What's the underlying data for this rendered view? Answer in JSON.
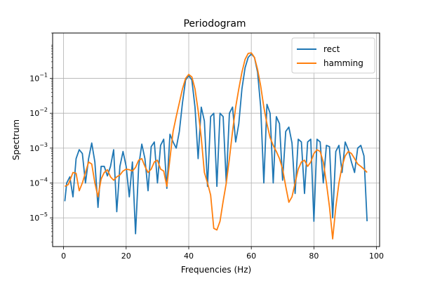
{
  "chart_data": {
    "type": "line",
    "title": "Periodogram",
    "xlabel": "Frequencies (Hz)",
    "ylabel": "Spectrum",
    "xlim": [
      -3.5,
      101
    ],
    "xticks": [
      0,
      20,
      40,
      60,
      80,
      100
    ],
    "ylim": [
      1.5e-06,
      2
    ],
    "yscale": "log",
    "ytick_values": [
      1e-05,
      0.0001,
      0.001,
      0.01,
      0.1
    ],
    "ytick_labels": [
      {
        "base": "10",
        "exp": "−5"
      },
      {
        "base": "10",
        "exp": "−4"
      },
      {
        "base": "10",
        "exp": "−3"
      },
      {
        "base": "10",
        "exp": "−2"
      },
      {
        "base": "10",
        "exp": "−1"
      }
    ],
    "grid": true,
    "legend_position": "top-right",
    "series": [
      {
        "name": "rect",
        "color": "#1f77b4",
        "points": [
          [
            0.4,
            3e-05
          ],
          [
            1,
            0.0001
          ],
          [
            2,
            0.00015
          ],
          [
            3,
            4e-05
          ],
          [
            4,
            0.0005
          ],
          [
            5,
            0.0009
          ],
          [
            6,
            0.0007
          ],
          [
            7,
            0.0001
          ],
          [
            8,
            0.0005
          ],
          [
            9,
            0.0014
          ],
          [
            10,
            0.0004
          ],
          [
            11,
            2e-05
          ],
          [
            12,
            0.0003
          ],
          [
            13,
            0.0003
          ],
          [
            14,
            0.00016
          ],
          [
            15,
            0.0003
          ],
          [
            16,
            0.0009
          ],
          [
            17,
            1.5e-05
          ],
          [
            18,
            0.0003
          ],
          [
            19,
            0.0008
          ],
          [
            20,
            0.0003
          ],
          [
            21,
            4e-05
          ],
          [
            22,
            0.0004
          ],
          [
            23,
            3.5e-06
          ],
          [
            24,
            0.0003
          ],
          [
            25,
            0.0013
          ],
          [
            26,
            0.0005
          ],
          [
            27,
            6e-05
          ],
          [
            28,
            0.0011
          ],
          [
            29,
            0.0015
          ],
          [
            30,
            0.0001
          ],
          [
            31,
            0.0012
          ],
          [
            32,
            0.0018
          ],
          [
            33,
            7e-05
          ],
          [
            34,
            0.0025
          ],
          [
            35,
            0.0015
          ],
          [
            36,
            0.001
          ],
          [
            37,
            0.003
          ],
          [
            38,
            0.02
          ],
          [
            39,
            0.09
          ],
          [
            40,
            0.12
          ],
          [
            41,
            0.09
          ],
          [
            42,
            0.015
          ],
          [
            43,
            0.0005
          ],
          [
            44,
            0.015
          ],
          [
            45,
            0.006
          ],
          [
            46,
            8e-05
          ],
          [
            47,
            0.008
          ],
          [
            48,
            0.01
          ],
          [
            49,
            8e-05
          ],
          [
            50,
            0.01
          ],
          [
            51,
            0.008
          ],
          [
            52,
            0.0001
          ],
          [
            53,
            0.01
          ],
          [
            54,
            0.015
          ],
          [
            55,
            0.0015
          ],
          [
            56,
            0.005
          ],
          [
            57,
            0.05
          ],
          [
            58,
            0.2
          ],
          [
            59,
            0.4
          ],
          [
            60,
            0.5
          ],
          [
            61,
            0.4
          ],
          [
            62,
            0.15
          ],
          [
            63,
            0.015
          ],
          [
            64,
            0.0001
          ],
          [
            65,
            0.018
          ],
          [
            66,
            0.01
          ],
          [
            67,
            0.0001
          ],
          [
            68,
            0.008
          ],
          [
            69,
            0.005
          ],
          [
            70,
            0.00012
          ],
          [
            71,
            0.003
          ],
          [
            72,
            0.004
          ],
          [
            73,
            0.0014
          ],
          [
            74,
            5e-05
          ],
          [
            75,
            0.0018
          ],
          [
            76,
            0.0015
          ],
          [
            77,
            5e-05
          ],
          [
            78,
            0.0015
          ],
          [
            79,
            0.0018
          ],
          [
            80,
            8e-06
          ],
          [
            81,
            0.0018
          ],
          [
            82,
            0.0015
          ],
          [
            83,
            0.0001
          ],
          [
            84,
            0.0012
          ],
          [
            85,
            0.0011
          ],
          [
            86,
            1e-05
          ],
          [
            87,
            0.0008
          ],
          [
            88,
            0.0012
          ],
          [
            89,
            0.0002
          ],
          [
            90,
            0.0015
          ],
          [
            91,
            0.0009
          ],
          [
            92,
            0.0004
          ],
          [
            93,
            0.0002
          ],
          [
            94,
            0.001
          ],
          [
            95,
            0.0012
          ],
          [
            96,
            0.0006
          ],
          [
            97,
            8e-06
          ]
        ]
      },
      {
        "name": "hamming",
        "color": "#ff7f0e",
        "points": [
          [
            0.4,
            8e-05
          ],
          [
            1.5,
            9e-05
          ],
          [
            3,
            0.0002
          ],
          [
            4,
            0.00019
          ],
          [
            5,
            6e-05
          ],
          [
            6,
            0.0001
          ],
          [
            7,
            0.0002
          ],
          [
            8,
            0.0004
          ],
          [
            9,
            0.00035
          ],
          [
            10,
            0.0001
          ],
          [
            11,
            4e-05
          ],
          [
            12,
            0.00013
          ],
          [
            13,
            0.0002
          ],
          [
            14,
            0.00024
          ],
          [
            15,
            0.00015
          ],
          [
            16,
            0.00012
          ],
          [
            17,
            0.00015
          ],
          [
            18,
            0.00017
          ],
          [
            19,
            0.00022
          ],
          [
            20,
            0.00025
          ],
          [
            21,
            0.00024
          ],
          [
            22,
            0.00022
          ],
          [
            23,
            0.00028
          ],
          [
            24,
            0.00045
          ],
          [
            25,
            0.0005
          ],
          [
            26,
            0.0003
          ],
          [
            27,
            0.0002
          ],
          [
            28,
            0.00025
          ],
          [
            29,
            0.0004
          ],
          [
            30,
            0.00045
          ],
          [
            31,
            0.00025
          ],
          [
            32,
            0.00022
          ],
          [
            33,
            8e-05
          ],
          [
            34,
            0.0005
          ],
          [
            35,
            0.003
          ],
          [
            36,
            0.008
          ],
          [
            37,
            0.02
          ],
          [
            38,
            0.05
          ],
          [
            39,
            0.1
          ],
          [
            40,
            0.13
          ],
          [
            41,
            0.11
          ],
          [
            42,
            0.05
          ],
          [
            43,
            0.012
          ],
          [
            44,
            0.002
          ],
          [
            45,
            0.0002
          ],
          [
            46,
            0.0001
          ],
          [
            47,
            4.5e-05
          ],
          [
            48,
            5e-06
          ],
          [
            49,
            4.5e-06
          ],
          [
            50,
            8e-06
          ],
          [
            51,
            3e-05
          ],
          [
            52,
            0.0001
          ],
          [
            53,
            0.0005
          ],
          [
            54,
            0.003
          ],
          [
            55,
            0.015
          ],
          [
            56,
            0.05
          ],
          [
            57,
            0.15
          ],
          [
            58,
            0.35
          ],
          [
            59,
            0.52
          ],
          [
            60,
            0.54
          ],
          [
            61,
            0.4
          ],
          [
            62,
            0.18
          ],
          [
            63,
            0.06
          ],
          [
            64,
            0.015
          ],
          [
            65,
            0.005
          ],
          [
            66,
            0.002
          ],
          [
            67,
            0.0012
          ],
          [
            68,
            0.0008
          ],
          [
            69,
            0.0005
          ],
          [
            70,
            0.00025
          ],
          [
            71,
            8e-05
          ],
          [
            72,
            2.8e-05
          ],
          [
            73,
            4e-05
          ],
          [
            74,
            0.0001
          ],
          [
            75,
            0.00025
          ],
          [
            76,
            0.0004
          ],
          [
            77,
            0.00045
          ],
          [
            78,
            0.0003
          ],
          [
            79,
            0.0004
          ],
          [
            80,
            0.0007
          ],
          [
            81,
            0.0009
          ],
          [
            82,
            0.0008
          ],
          [
            83,
            0.0004
          ],
          [
            84,
            0.0001
          ],
          [
            85,
            2e-05
          ],
          [
            86,
            2.5e-06
          ],
          [
            87,
            2e-05
          ],
          [
            88,
            0.0001
          ],
          [
            89,
            0.0003
          ],
          [
            90,
            0.0006
          ],
          [
            91,
            0.0008
          ],
          [
            92,
            0.0007
          ],
          [
            93,
            0.0005
          ],
          [
            94,
            0.00035
          ],
          [
            95,
            0.0003
          ],
          [
            96,
            0.00025
          ],
          [
            97,
            0.0002
          ]
        ]
      }
    ]
  }
}
